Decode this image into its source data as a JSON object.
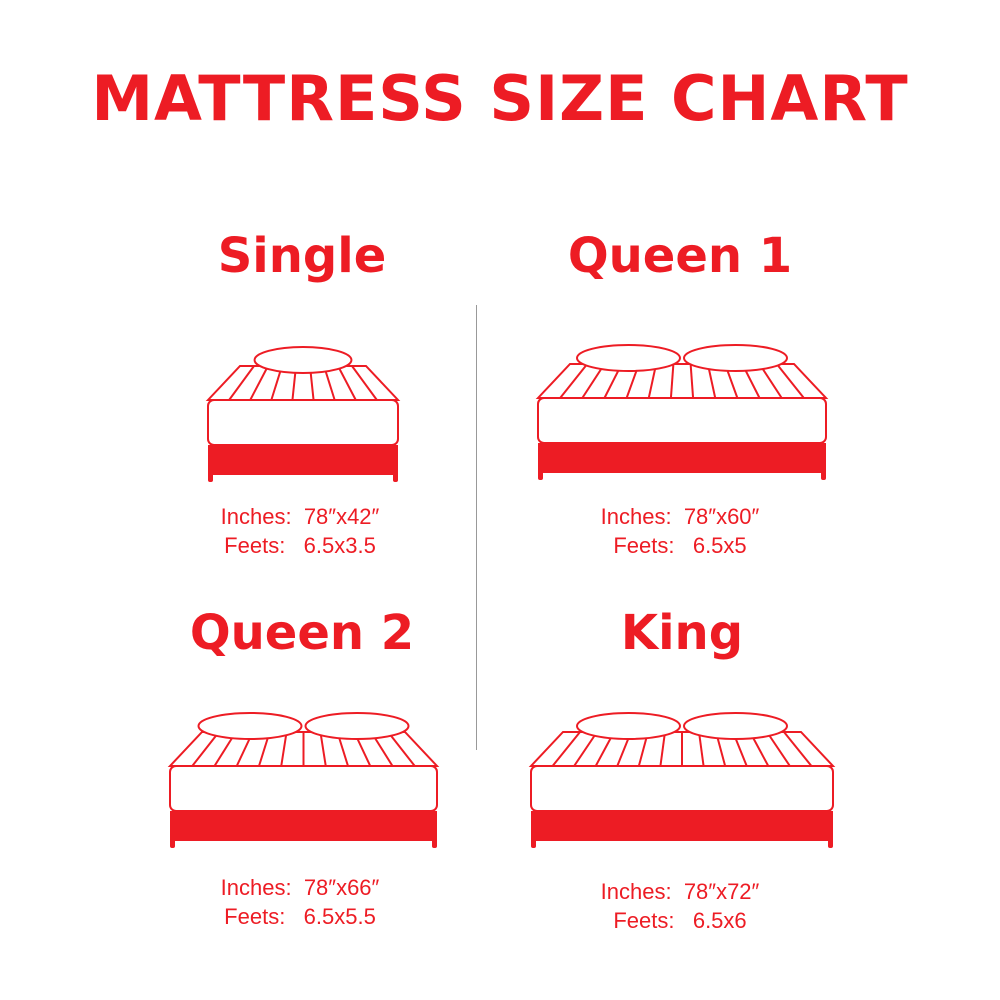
{
  "title": "MATTRESS SIZE CHART",
  "accent_color": "#ed1c24",
  "sizes": [
    {
      "name": "Single",
      "pillows": 1,
      "inches_label": "Inches:",
      "inches": "78″x42″",
      "feets_label": "Feets:",
      "feets": "6.5x3.5"
    },
    {
      "name": "Queen 1",
      "pillows": 2,
      "inches_label": "Inches:",
      "inches": "78″x60″",
      "feets_label": "Feets:",
      "feets": "6.5x5"
    },
    {
      "name": "Queen 2",
      "pillows": 2,
      "inches_label": "Inches:",
      "inches": "78″x66″",
      "feets_label": "Feets:",
      "feets": "6.5x5.5"
    },
    {
      "name": "King",
      "pillows": 2,
      "inches_label": "Inches:",
      "inches": "78″x72″",
      "feets_label": "Feets:",
      "feets": "6.5x6"
    }
  ]
}
